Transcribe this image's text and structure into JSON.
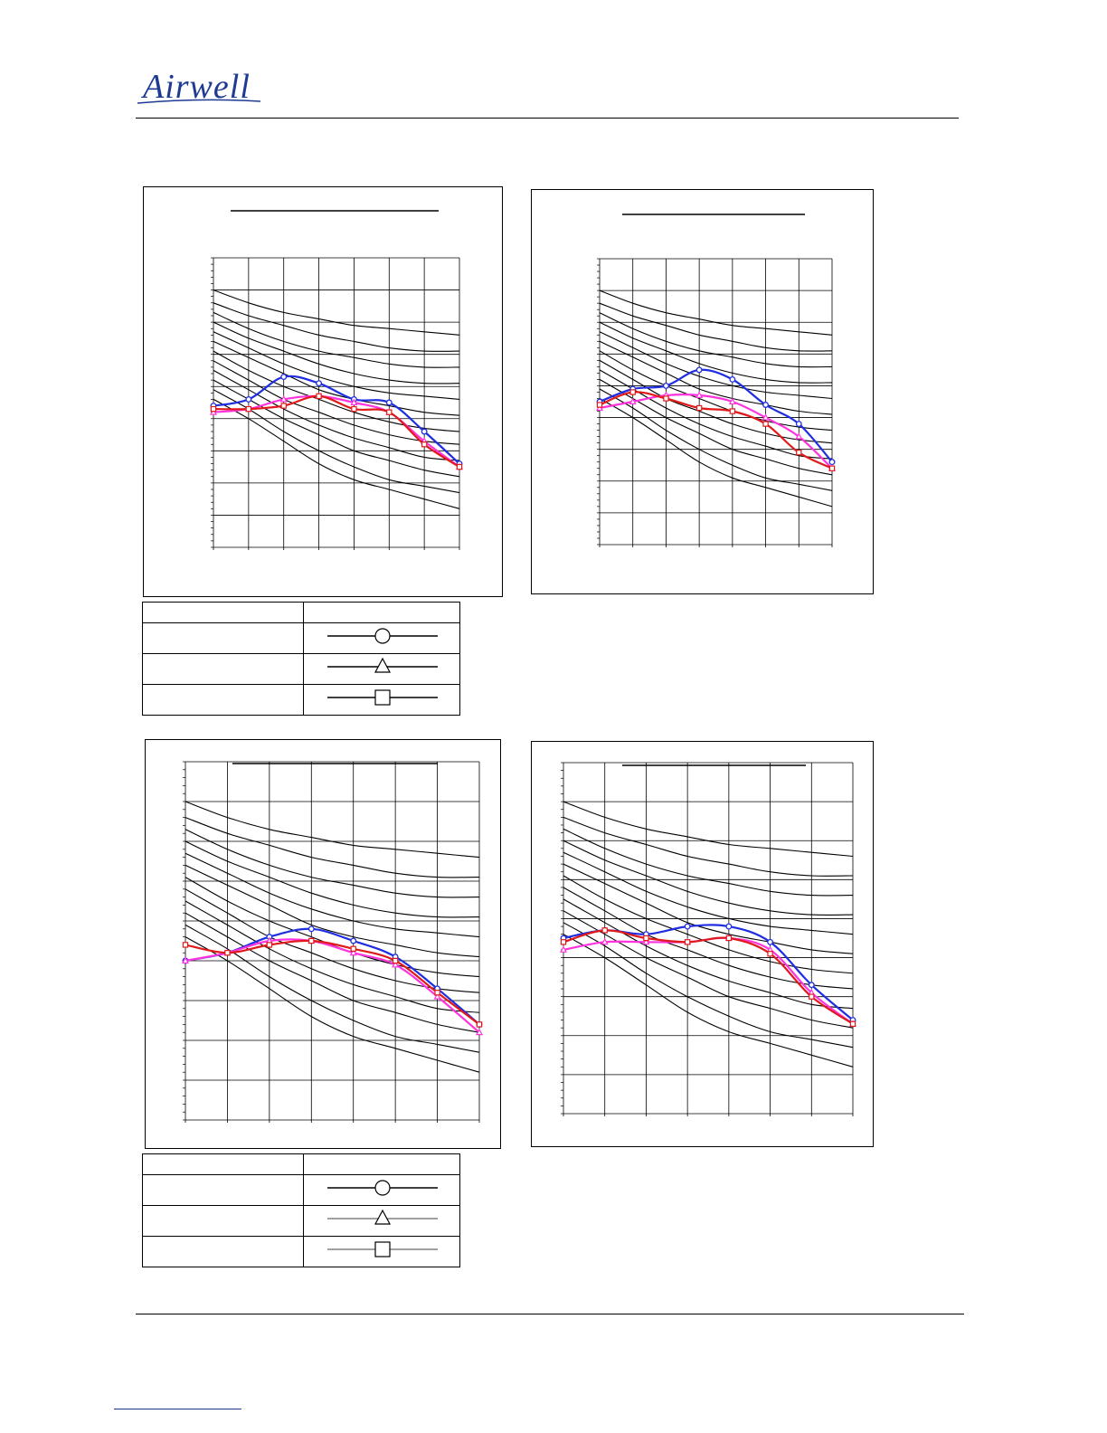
{
  "header": {
    "logo_text": "Airwell"
  },
  "colors": {
    "series_1": "#1f2ee0",
    "series_2": "#ff33dd",
    "series_3": "#e01a1a",
    "grid": "#000000"
  },
  "legend_symbols": [
    "circle",
    "triangle",
    "square"
  ],
  "chart_data": [
    {
      "type": "line",
      "x": [
        1,
        2,
        3,
        4,
        5,
        6,
        7,
        8
      ],
      "ylim": [
        0,
        90
      ],
      "xlim": [
        1,
        8
      ],
      "nc_curves": [
        [
          80,
          76,
          73,
          71,
          69,
          68,
          67,
          66
        ],
        [
          76,
          72,
          69,
          66,
          64,
          62,
          61,
          61
        ],
        [
          73,
          68,
          64,
          61,
          59,
          57,
          56,
          56
        ],
        [
          70,
          65,
          61,
          57,
          54,
          52,
          51,
          51
        ],
        [
          67,
          62,
          57,
          53,
          50,
          48,
          47,
          46
        ],
        [
          64,
          59,
          54,
          49,
          46,
          44,
          42,
          41
        ],
        [
          61,
          55,
          50,
          46,
          42,
          39,
          37,
          36
        ],
        [
          58,
          52,
          46,
          42,
          38,
          35,
          33,
          32
        ],
        [
          55,
          49,
          43,
          38,
          34,
          31,
          28,
          27
        ],
        [
          52,
          46,
          40,
          35,
          30,
          27,
          24,
          22
        ],
        [
          49,
          43,
          36,
          30,
          25,
          21,
          19,
          17
        ],
        [
          46,
          40,
          33,
          26,
          21,
          18,
          15,
          12
        ]
      ],
      "series": [
        {
          "values": [
            44,
            46,
            53,
            51,
            46,
            45,
            36,
            26
          ]
        },
        {
          "values": [
            42,
            43,
            46,
            47,
            45,
            42,
            33,
            25
          ]
        },
        {
          "values": [
            43,
            43,
            44,
            47,
            43,
            42,
            32,
            25
          ]
        }
      ]
    },
    {
      "type": "line",
      "x": [
        1,
        2,
        3,
        4,
        5,
        6,
        7,
        8
      ],
      "ylim": [
        0,
        90
      ],
      "xlim": [
        1,
        8
      ],
      "nc_curves": [
        [
          80,
          76,
          73,
          71,
          69,
          68,
          67,
          66
        ],
        [
          76,
          72,
          69,
          66,
          64,
          62,
          61,
          61
        ],
        [
          73,
          68,
          64,
          61,
          59,
          57,
          56,
          56
        ],
        [
          70,
          65,
          61,
          57,
          54,
          52,
          51,
          51
        ],
        [
          67,
          62,
          57,
          53,
          50,
          48,
          47,
          46
        ],
        [
          64,
          59,
          54,
          49,
          46,
          44,
          42,
          41
        ],
        [
          61,
          55,
          50,
          46,
          42,
          39,
          37,
          36
        ],
        [
          58,
          52,
          46,
          42,
          38,
          35,
          33,
          32
        ],
        [
          55,
          49,
          43,
          38,
          34,
          31,
          28,
          27
        ],
        [
          52,
          46,
          40,
          35,
          30,
          27,
          24,
          22
        ],
        [
          49,
          43,
          36,
          30,
          25,
          21,
          19,
          17
        ],
        [
          46,
          40,
          33,
          26,
          21,
          18,
          15,
          12
        ]
      ],
      "series": [
        {
          "values": [
            45,
            49,
            50,
            55,
            52,
            44,
            38,
            26
          ]
        },
        {
          "values": [
            43,
            45,
            47,
            47,
            45,
            40,
            34,
            24
          ]
        },
        {
          "values": [
            44,
            48,
            46,
            43,
            42,
            38,
            29,
            24
          ]
        }
      ]
    },
    {
      "type": "line",
      "x": [
        1,
        2,
        3,
        4,
        5,
        6,
        7,
        8
      ],
      "ylim": [
        0,
        90
      ],
      "xlim": [
        1,
        8
      ],
      "nc_curves": [
        [
          80,
          76,
          73,
          71,
          69,
          68,
          67,
          66
        ],
        [
          76,
          72,
          69,
          66,
          64,
          62,
          61,
          61
        ],
        [
          73,
          68,
          64,
          61,
          59,
          57,
          56,
          56
        ],
        [
          70,
          65,
          61,
          57,
          54,
          52,
          51,
          51
        ],
        [
          67,
          62,
          57,
          53,
          50,
          48,
          47,
          46
        ],
        [
          64,
          59,
          54,
          49,
          46,
          44,
          42,
          41
        ],
        [
          61,
          55,
          50,
          46,
          42,
          39,
          37,
          36
        ],
        [
          58,
          52,
          46,
          42,
          38,
          35,
          33,
          32
        ],
        [
          55,
          49,
          43,
          38,
          34,
          31,
          28,
          27
        ],
        [
          52,
          46,
          40,
          35,
          30,
          27,
          24,
          22
        ],
        [
          49,
          43,
          36,
          30,
          25,
          21,
          19,
          17
        ],
        [
          46,
          40,
          33,
          26,
          21,
          18,
          15,
          12
        ]
      ],
      "series": [
        {
          "values": [
            40,
            42,
            46,
            48,
            45,
            41,
            33,
            24
          ]
        },
        {
          "values": [
            40,
            42,
            45,
            45,
            42,
            39,
            31,
            22
          ]
        },
        {
          "values": [
            44,
            42,
            44,
            45,
            43,
            40,
            32,
            24
          ]
        }
      ]
    },
    {
      "type": "line",
      "x": [
        1,
        2,
        3,
        4,
        5,
        6,
        7,
        8
      ],
      "ylim": [
        0,
        90
      ],
      "xlim": [
        1,
        8
      ],
      "nc_curves": [
        [
          80,
          76,
          73,
          71,
          69,
          68,
          67,
          66
        ],
        [
          76,
          72,
          69,
          66,
          64,
          62,
          61,
          61
        ],
        [
          73,
          68,
          64,
          61,
          59,
          57,
          56,
          56
        ],
        [
          70,
          65,
          61,
          57,
          54,
          52,
          51,
          51
        ],
        [
          67,
          62,
          57,
          53,
          50,
          48,
          47,
          46
        ],
        [
          64,
          59,
          54,
          49,
          46,
          44,
          42,
          41
        ],
        [
          61,
          55,
          50,
          46,
          42,
          39,
          37,
          36
        ],
        [
          58,
          52,
          46,
          42,
          38,
          35,
          33,
          32
        ],
        [
          55,
          49,
          43,
          38,
          34,
          31,
          28,
          27
        ],
        [
          52,
          46,
          40,
          35,
          30,
          27,
          24,
          22
        ],
        [
          49,
          43,
          36,
          30,
          25,
          21,
          19,
          17
        ],
        [
          46,
          40,
          33,
          26,
          21,
          18,
          15,
          12
        ]
      ],
      "series": [
        {
          "values": [
            45,
            47,
            46,
            48,
            48,
            44,
            33,
            24
          ]
        },
        {
          "values": [
            42,
            44,
            44,
            44,
            45,
            42,
            31,
            23
          ]
        },
        {
          "values": [
            44,
            47,
            45,
            44,
            45,
            41,
            30,
            23
          ]
        }
      ]
    }
  ]
}
